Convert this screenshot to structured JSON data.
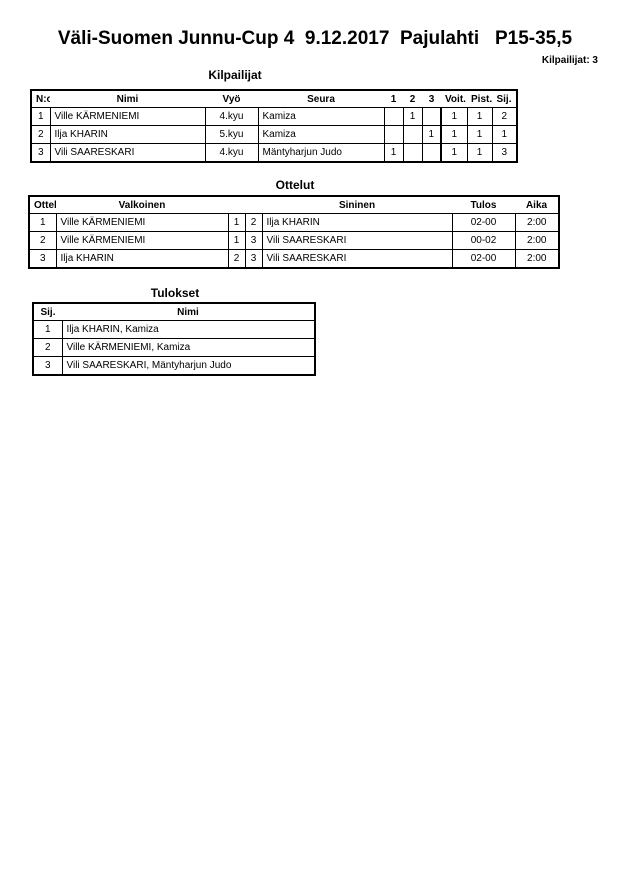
{
  "header": {
    "title": "Väli-Suomen Junnu-Cup 4  9.12.2017  Pajulahti   P15-35,5",
    "competitor_count": "Kilpailijat: 3"
  },
  "kilpailijat": {
    "title": "Kilpailijat",
    "columns": [
      "N:o",
      "Nimi",
      "Vyö",
      "Seura",
      "1",
      "2",
      "3",
      "Voit.",
      "Pist.",
      "Sij."
    ],
    "rows": [
      [
        "1",
        "Ville KÄRMENIEMI",
        "4.kyu",
        "Kamiza",
        "",
        "1",
        "",
        "1",
        "1",
        "2"
      ],
      [
        "2",
        "Ilja KHARIN",
        "5.kyu",
        "Kamiza",
        "",
        "",
        "1",
        "1",
        "1",
        "1"
      ],
      [
        "3",
        "Vili SAARESKARI",
        "4.kyu",
        "Mäntyharjun Judo",
        "1",
        "",
        "",
        "1",
        "1",
        "3"
      ]
    ]
  },
  "ottelut": {
    "title": "Ottelut",
    "columns": [
      "Ottelu",
      "Valkoinen",
      "",
      "",
      "Sininen",
      "Tulos",
      "Aika"
    ],
    "rows": [
      [
        "1",
        "Ville KÄRMENIEMI",
        "1",
        "2",
        "Ilja KHARIN",
        "02-00",
        "2:00"
      ],
      [
        "2",
        "Ville KÄRMENIEMI",
        "1",
        "3",
        "Vili SAARESKARI",
        "00-02",
        "2:00"
      ],
      [
        "3",
        "Ilja KHARIN",
        "2",
        "3",
        "Vili SAARESKARI",
        "02-00",
        "2:00"
      ]
    ]
  },
  "tulokset": {
    "title": "Tulokset",
    "columns": [
      "Sij.",
      "Nimi"
    ],
    "rows": [
      [
        "1",
        "Ilja KHARIN, Kamiza"
      ],
      [
        "2",
        "Ville KÄRMENIEMI, Kamiza"
      ],
      [
        "3",
        "Vili SAARESKARI, Mäntyharjun Judo"
      ]
    ]
  }
}
